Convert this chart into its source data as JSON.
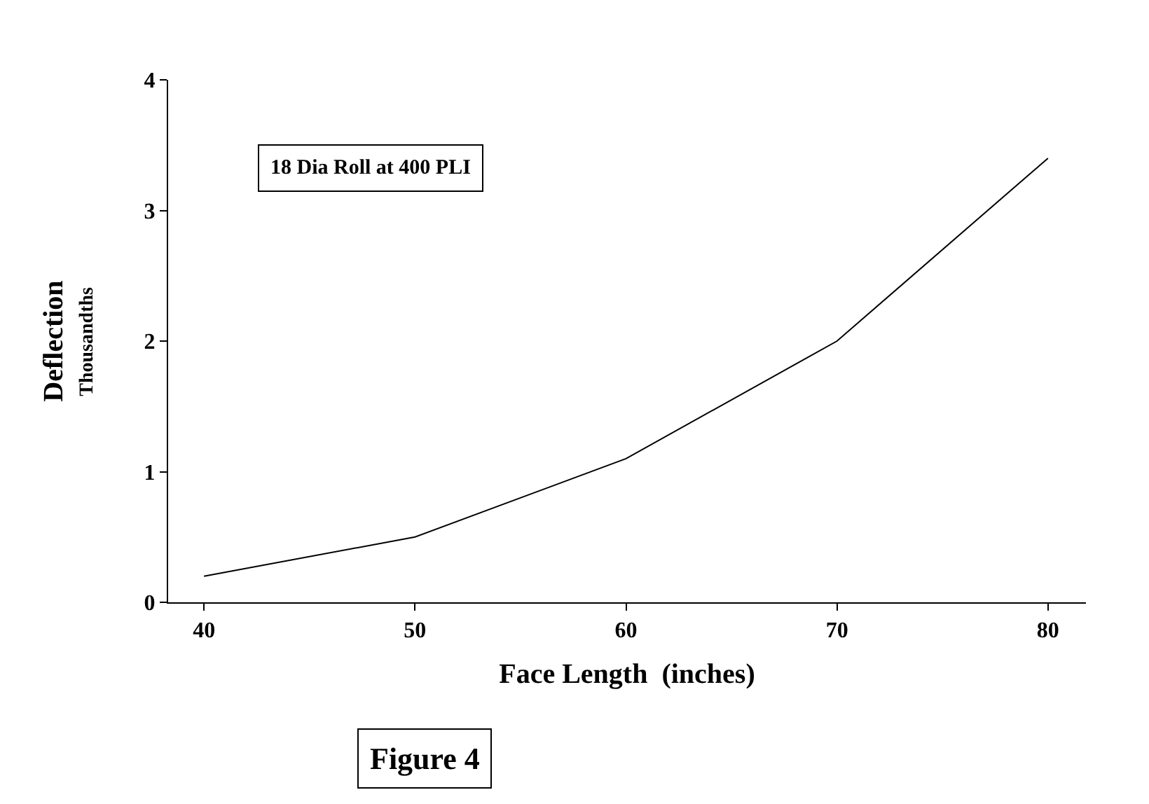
{
  "chart_data": {
    "type": "line",
    "xlabel": "Face Length  (inches)",
    "ylabel": "Deflection",
    "x": [
      40,
      50,
      60,
      70,
      80
    ],
    "series": [
      {
        "color": "#000000",
        "values": [
          0.2,
          0.5,
          1.1,
          2.0,
          3.4
        ]
      }
    ],
    "xlim": [
      38.3,
      81.8
    ],
    "xticks": [
      40,
      50,
      60,
      70,
      80
    ],
    "ylim": [
      0,
      4
    ],
    "yticks": [
      0,
      1,
      2,
      3,
      4
    ],
    "annotations": [
      "Thousandths",
      "18 Dia Roll at 400 PLI",
      "Figure 4"
    ],
    "grid": false,
    "marker": "none",
    "line_style": "solid"
  }
}
